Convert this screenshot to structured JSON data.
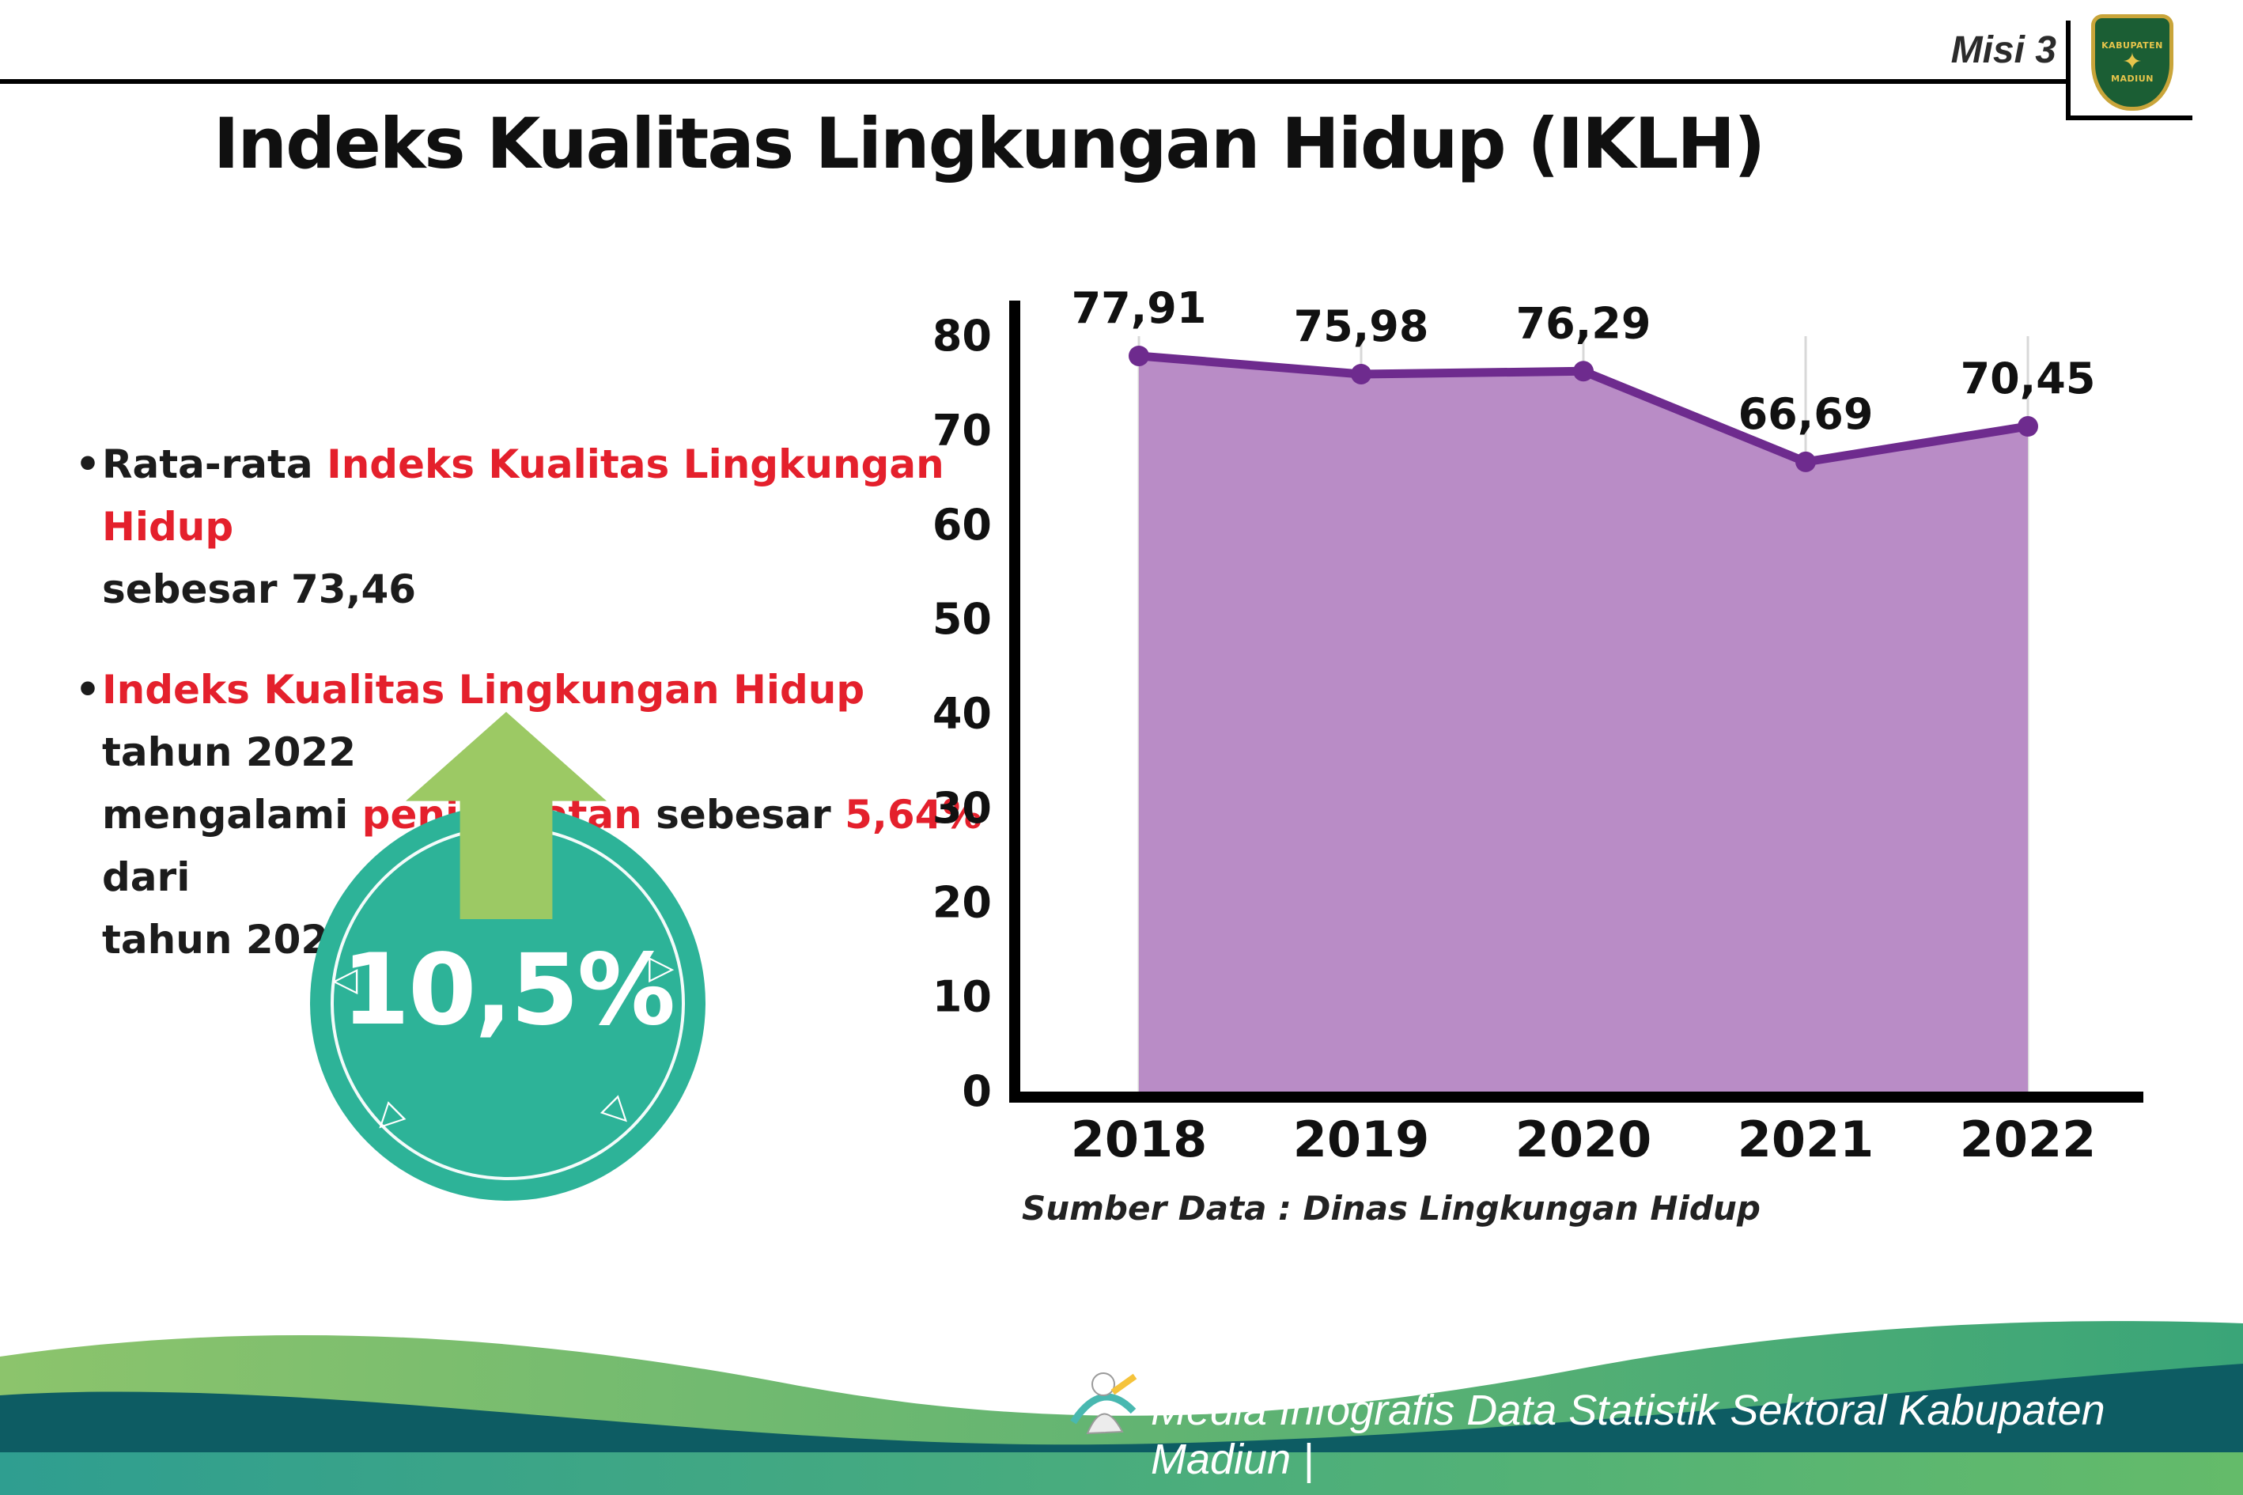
{
  "header": {
    "misi": "Misi 3",
    "title": "Indeks Kualitas Lingkungan Hidup (IKLH)"
  },
  "logo": {
    "top_text": "KABUPATEN",
    "bottom_text": "MADIUN"
  },
  "bullet_char": "•",
  "bullets": [
    {
      "lines": [
        [
          {
            "t": "Rata-rata ",
            "red": false
          },
          {
            "t": "Indeks Kualitas Lingkungan Hidup",
            "red": true
          }
        ],
        [
          {
            "t": "sebesar 73,46",
            "red": false
          }
        ]
      ]
    },
    {
      "lines": [
        [
          {
            "t": "Indeks Kualitas Lingkungan Hidup",
            "red": true
          },
          {
            "t": " tahun 2022",
            "red": false
          }
        ],
        [
          {
            "t": "mengalami ",
            "red": false
          },
          {
            "t": "peningkatan",
            "red": true
          },
          {
            "t": " sebesar ",
            "red": false
          },
          {
            "t": "5,64%",
            "red": true
          },
          {
            "t": " dari",
            "red": false
          }
        ],
        [
          {
            "t": "tahun 2021",
            "red": false
          }
        ]
      ]
    }
  ],
  "badge": {
    "value": "10,5%"
  },
  "chart_data": {
    "type": "area",
    "title": "Indeks Kualitas Lingkungan Hidup (IKLH)",
    "categories": [
      "2018",
      "2019",
      "2020",
      "2021",
      "2022"
    ],
    "values": [
      77.91,
      75.98,
      76.29,
      66.69,
      70.45
    ],
    "labels": [
      "77,91",
      "75,98",
      "76,29",
      "66,69",
      "70,45"
    ],
    "ylim": [
      0,
      80
    ],
    "yticks": [
      0,
      10,
      20,
      30,
      40,
      50,
      60,
      70,
      80
    ],
    "grid": "vertical",
    "legend": "none",
    "xlabel": "",
    "ylabel": "",
    "source": "Sumber Data : Dinas Lingkungan Hidup",
    "colors": {
      "fill": "#b98cc6",
      "line": "#6e2b8e"
    }
  },
  "footer": {
    "brand": "Media Infografis Data Statistik Sektoral Kabupaten Madiun |"
  },
  "colors": {
    "accent_red": "#e4202c",
    "badge_teal": "#2db398",
    "arrow_green": "#9cc964",
    "footer_teal": "#0d5c63"
  }
}
